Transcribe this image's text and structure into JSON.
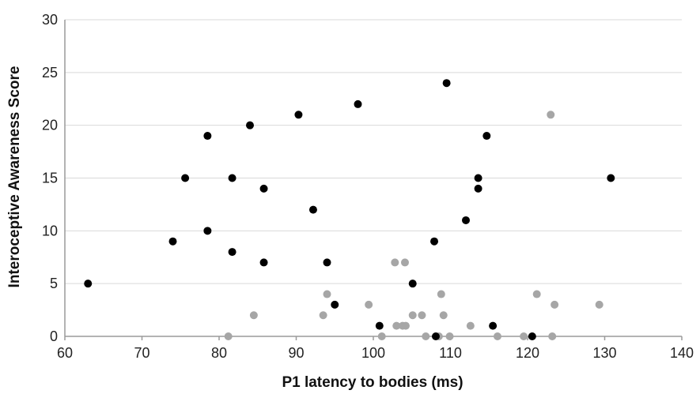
{
  "chart_data": {
    "type": "scatter",
    "xlabel": "P1 latency to bodies (ms)",
    "ylabel": "Interoceptive Awareness Score",
    "xlim": [
      60,
      140
    ],
    "ylim": [
      0,
      30
    ],
    "xticks": [
      60,
      70,
      80,
      90,
      100,
      110,
      120,
      130,
      140
    ],
    "yticks": [
      0,
      5,
      10,
      15,
      20,
      25,
      30
    ],
    "grid": "horizontal",
    "legend": "none",
    "series": [
      {
        "color": "#000000",
        "points": [
          [
            63,
            5
          ],
          [
            74,
            9
          ],
          [
            75.6,
            15
          ],
          [
            78.5,
            19
          ],
          [
            78.5,
            10
          ],
          [
            81.7,
            15
          ],
          [
            81.7,
            8
          ],
          [
            84,
            20
          ],
          [
            85.8,
            14
          ],
          [
            85.8,
            7
          ],
          [
            90.3,
            21
          ],
          [
            92.2,
            12
          ],
          [
            94,
            7
          ],
          [
            95,
            3
          ],
          [
            98,
            22
          ],
          [
            100.8,
            1
          ],
          [
            105.1,
            5
          ],
          [
            107.9,
            9
          ],
          [
            108.1,
            0
          ],
          [
            109.5,
            24
          ],
          [
            112,
            11
          ],
          [
            113.6,
            15
          ],
          [
            113.6,
            14
          ],
          [
            114.7,
            19
          ],
          [
            115.5,
            1
          ],
          [
            120.6,
            0
          ],
          [
            130.8,
            15
          ]
        ]
      },
      {
        "color": "#a6a6a6",
        "points": [
          [
            81.2,
            0
          ],
          [
            84.5,
            2
          ],
          [
            93.5,
            2
          ],
          [
            94,
            4
          ],
          [
            99.4,
            3
          ],
          [
            101.1,
            0
          ],
          [
            102.8,
            7
          ],
          [
            103,
            1
          ],
          [
            103.8,
            1
          ],
          [
            104.1,
            7
          ],
          [
            104.2,
            1
          ],
          [
            105.1,
            2
          ],
          [
            106.3,
            2
          ],
          [
            106.8,
            0
          ],
          [
            108.5,
            0
          ],
          [
            108.8,
            4
          ],
          [
            109.1,
            2
          ],
          [
            109.9,
            0
          ],
          [
            112.6,
            1
          ],
          [
            116.1,
            0
          ],
          [
            119.5,
            0
          ],
          [
            121.2,
            4
          ],
          [
            123,
            21
          ],
          [
            123.2,
            0
          ],
          [
            123.5,
            3
          ],
          [
            129.3,
            3
          ]
        ]
      }
    ]
  }
}
